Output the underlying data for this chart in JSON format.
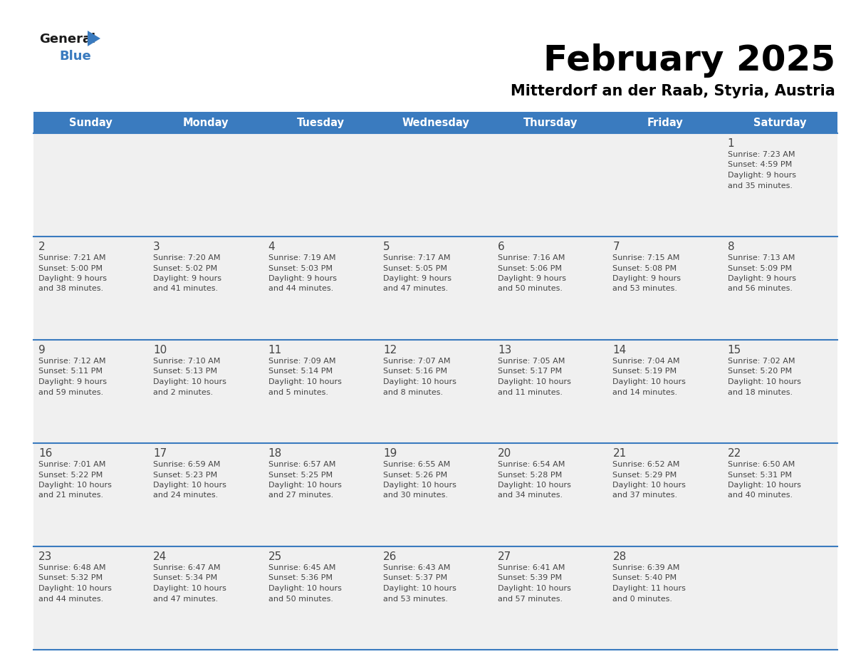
{
  "title": "February 2025",
  "subtitle": "Mitterdorf an der Raab, Styria, Austria",
  "days_of_week": [
    "Sunday",
    "Monday",
    "Tuesday",
    "Wednesday",
    "Thursday",
    "Friday",
    "Saturday"
  ],
  "header_bg": "#3a7bbf",
  "header_text": "#ffffff",
  "cell_bg_light": "#f0f0f0",
  "cell_bg_white": "#ffffff",
  "row_line_color": "#3a7bbf",
  "text_color": "#444444",
  "logo_general_color": "#1a1a1a",
  "logo_blue_color": "#3a7bbf",
  "logo_triangle_color": "#3a7bbf",
  "title_fontsize": 36,
  "subtitle_fontsize": 15,
  "header_fontsize": 11,
  "day_num_fontsize": 11,
  "cell_text_fontsize": 8,
  "calendar_data": [
    [
      {
        "day": null,
        "sunrise": null,
        "sunset": null,
        "daylight_line1": null,
        "daylight_line2": null
      },
      {
        "day": null,
        "sunrise": null,
        "sunset": null,
        "daylight_line1": null,
        "daylight_line2": null
      },
      {
        "day": null,
        "sunrise": null,
        "sunset": null,
        "daylight_line1": null,
        "daylight_line2": null
      },
      {
        "day": null,
        "sunrise": null,
        "sunset": null,
        "daylight_line1": null,
        "daylight_line2": null
      },
      {
        "day": null,
        "sunrise": null,
        "sunset": null,
        "daylight_line1": null,
        "daylight_line2": null
      },
      {
        "day": null,
        "sunrise": null,
        "sunset": null,
        "daylight_line1": null,
        "daylight_line2": null
      },
      {
        "day": 1,
        "sunrise": "7:23 AM",
        "sunset": "4:59 PM",
        "daylight_line1": "Daylight: 9 hours",
        "daylight_line2": "and 35 minutes."
      }
    ],
    [
      {
        "day": 2,
        "sunrise": "7:21 AM",
        "sunset": "5:00 PM",
        "daylight_line1": "Daylight: 9 hours",
        "daylight_line2": "and 38 minutes."
      },
      {
        "day": 3,
        "sunrise": "7:20 AM",
        "sunset": "5:02 PM",
        "daylight_line1": "Daylight: 9 hours",
        "daylight_line2": "and 41 minutes."
      },
      {
        "day": 4,
        "sunrise": "7:19 AM",
        "sunset": "5:03 PM",
        "daylight_line1": "Daylight: 9 hours",
        "daylight_line2": "and 44 minutes."
      },
      {
        "day": 5,
        "sunrise": "7:17 AM",
        "sunset": "5:05 PM",
        "daylight_line1": "Daylight: 9 hours",
        "daylight_line2": "and 47 minutes."
      },
      {
        "day": 6,
        "sunrise": "7:16 AM",
        "sunset": "5:06 PM",
        "daylight_line1": "Daylight: 9 hours",
        "daylight_line2": "and 50 minutes."
      },
      {
        "day": 7,
        "sunrise": "7:15 AM",
        "sunset": "5:08 PM",
        "daylight_line1": "Daylight: 9 hours",
        "daylight_line2": "and 53 minutes."
      },
      {
        "day": 8,
        "sunrise": "7:13 AM",
        "sunset": "5:09 PM",
        "daylight_line1": "Daylight: 9 hours",
        "daylight_line2": "and 56 minutes."
      }
    ],
    [
      {
        "day": 9,
        "sunrise": "7:12 AM",
        "sunset": "5:11 PM",
        "daylight_line1": "Daylight: 9 hours",
        "daylight_line2": "and 59 minutes."
      },
      {
        "day": 10,
        "sunrise": "7:10 AM",
        "sunset": "5:13 PM",
        "daylight_line1": "Daylight: 10 hours",
        "daylight_line2": "and 2 minutes."
      },
      {
        "day": 11,
        "sunrise": "7:09 AM",
        "sunset": "5:14 PM",
        "daylight_line1": "Daylight: 10 hours",
        "daylight_line2": "and 5 minutes."
      },
      {
        "day": 12,
        "sunrise": "7:07 AM",
        "sunset": "5:16 PM",
        "daylight_line1": "Daylight: 10 hours",
        "daylight_line2": "and 8 minutes."
      },
      {
        "day": 13,
        "sunrise": "7:05 AM",
        "sunset": "5:17 PM",
        "daylight_line1": "Daylight: 10 hours",
        "daylight_line2": "and 11 minutes."
      },
      {
        "day": 14,
        "sunrise": "7:04 AM",
        "sunset": "5:19 PM",
        "daylight_line1": "Daylight: 10 hours",
        "daylight_line2": "and 14 minutes."
      },
      {
        "day": 15,
        "sunrise": "7:02 AM",
        "sunset": "5:20 PM",
        "daylight_line1": "Daylight: 10 hours",
        "daylight_line2": "and 18 minutes."
      }
    ],
    [
      {
        "day": 16,
        "sunrise": "7:01 AM",
        "sunset": "5:22 PM",
        "daylight_line1": "Daylight: 10 hours",
        "daylight_line2": "and 21 minutes."
      },
      {
        "day": 17,
        "sunrise": "6:59 AM",
        "sunset": "5:23 PM",
        "daylight_line1": "Daylight: 10 hours",
        "daylight_line2": "and 24 minutes."
      },
      {
        "day": 18,
        "sunrise": "6:57 AM",
        "sunset": "5:25 PM",
        "daylight_line1": "Daylight: 10 hours",
        "daylight_line2": "and 27 minutes."
      },
      {
        "day": 19,
        "sunrise": "6:55 AM",
        "sunset": "5:26 PM",
        "daylight_line1": "Daylight: 10 hours",
        "daylight_line2": "and 30 minutes."
      },
      {
        "day": 20,
        "sunrise": "6:54 AM",
        "sunset": "5:28 PM",
        "daylight_line1": "Daylight: 10 hours",
        "daylight_line2": "and 34 minutes."
      },
      {
        "day": 21,
        "sunrise": "6:52 AM",
        "sunset": "5:29 PM",
        "daylight_line1": "Daylight: 10 hours",
        "daylight_line2": "and 37 minutes."
      },
      {
        "day": 22,
        "sunrise": "6:50 AM",
        "sunset": "5:31 PM",
        "daylight_line1": "Daylight: 10 hours",
        "daylight_line2": "and 40 minutes."
      }
    ],
    [
      {
        "day": 23,
        "sunrise": "6:48 AM",
        "sunset": "5:32 PM",
        "daylight_line1": "Daylight: 10 hours",
        "daylight_line2": "and 44 minutes."
      },
      {
        "day": 24,
        "sunrise": "6:47 AM",
        "sunset": "5:34 PM",
        "daylight_line1": "Daylight: 10 hours",
        "daylight_line2": "and 47 minutes."
      },
      {
        "day": 25,
        "sunrise": "6:45 AM",
        "sunset": "5:36 PM",
        "daylight_line1": "Daylight: 10 hours",
        "daylight_line2": "and 50 minutes."
      },
      {
        "day": 26,
        "sunrise": "6:43 AM",
        "sunset": "5:37 PM",
        "daylight_line1": "Daylight: 10 hours",
        "daylight_line2": "and 53 minutes."
      },
      {
        "day": 27,
        "sunrise": "6:41 AM",
        "sunset": "5:39 PM",
        "daylight_line1": "Daylight: 10 hours",
        "daylight_line2": "and 57 minutes."
      },
      {
        "day": 28,
        "sunrise": "6:39 AM",
        "sunset": "5:40 PM",
        "daylight_line1": "Daylight: 11 hours",
        "daylight_line2": "and 0 minutes."
      },
      {
        "day": null,
        "sunrise": null,
        "sunset": null,
        "daylight_line1": null,
        "daylight_line2": null
      }
    ]
  ]
}
